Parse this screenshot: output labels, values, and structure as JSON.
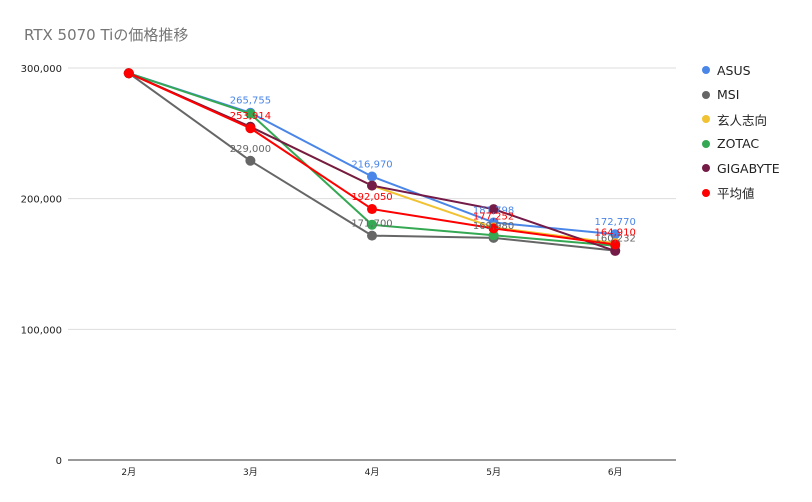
{
  "chart_data": {
    "type": "line",
    "title": "RTX 5070 Tiの価格推移",
    "categories": [
      "2月",
      "3月",
      "4月",
      "5月",
      "6月"
    ],
    "yticks": [
      "0",
      "100,000",
      "200,000",
      "300,000"
    ],
    "ylim": [
      0,
      300000
    ],
    "grid": true,
    "legend_position": "right",
    "series": [
      {
        "name": "ASUS",
        "color": "#4a86e8",
        "values": [
          296000,
          265755,
          216970,
          181798,
          172770
        ],
        "labels": [
          "",
          "265,755",
          "216,970",
          "181,798",
          "172,770"
        ]
      },
      {
        "name": "MSI",
        "color": "#666666",
        "values": [
          296000,
          229000,
          171700,
          169980,
          160232
        ],
        "labels": [
          "",
          "229,000",
          "171,700",
          "169,980",
          "160,232"
        ]
      },
      {
        "name": "玄人志向",
        "color": "#f1c232",
        "values": [
          296000,
          255000,
          210000,
          178000,
          166000
        ],
        "labels": [
          "",
          "",
          "",
          "",
          ""
        ]
      },
      {
        "name": "ZOTAC",
        "color": "#34a853",
        "values": [
          296000,
          265000,
          180000,
          172000,
          164000
        ],
        "labels": [
          "",
          "",
          "",
          "",
          ""
        ]
      },
      {
        "name": "GIGABYTE",
        "color": "#741b47",
        "values": [
          296000,
          255000,
          210000,
          192000,
          160000
        ],
        "labels": [
          "",
          "",
          "",
          "",
          ""
        ]
      },
      {
        "name": "平均値",
        "color": "#ff0000",
        "values": [
          296000,
          253914,
          192050,
          177252,
          164910
        ],
        "labels": [
          "",
          "253,914",
          "192,050",
          "177,252",
          "164,910"
        ]
      }
    ]
  }
}
